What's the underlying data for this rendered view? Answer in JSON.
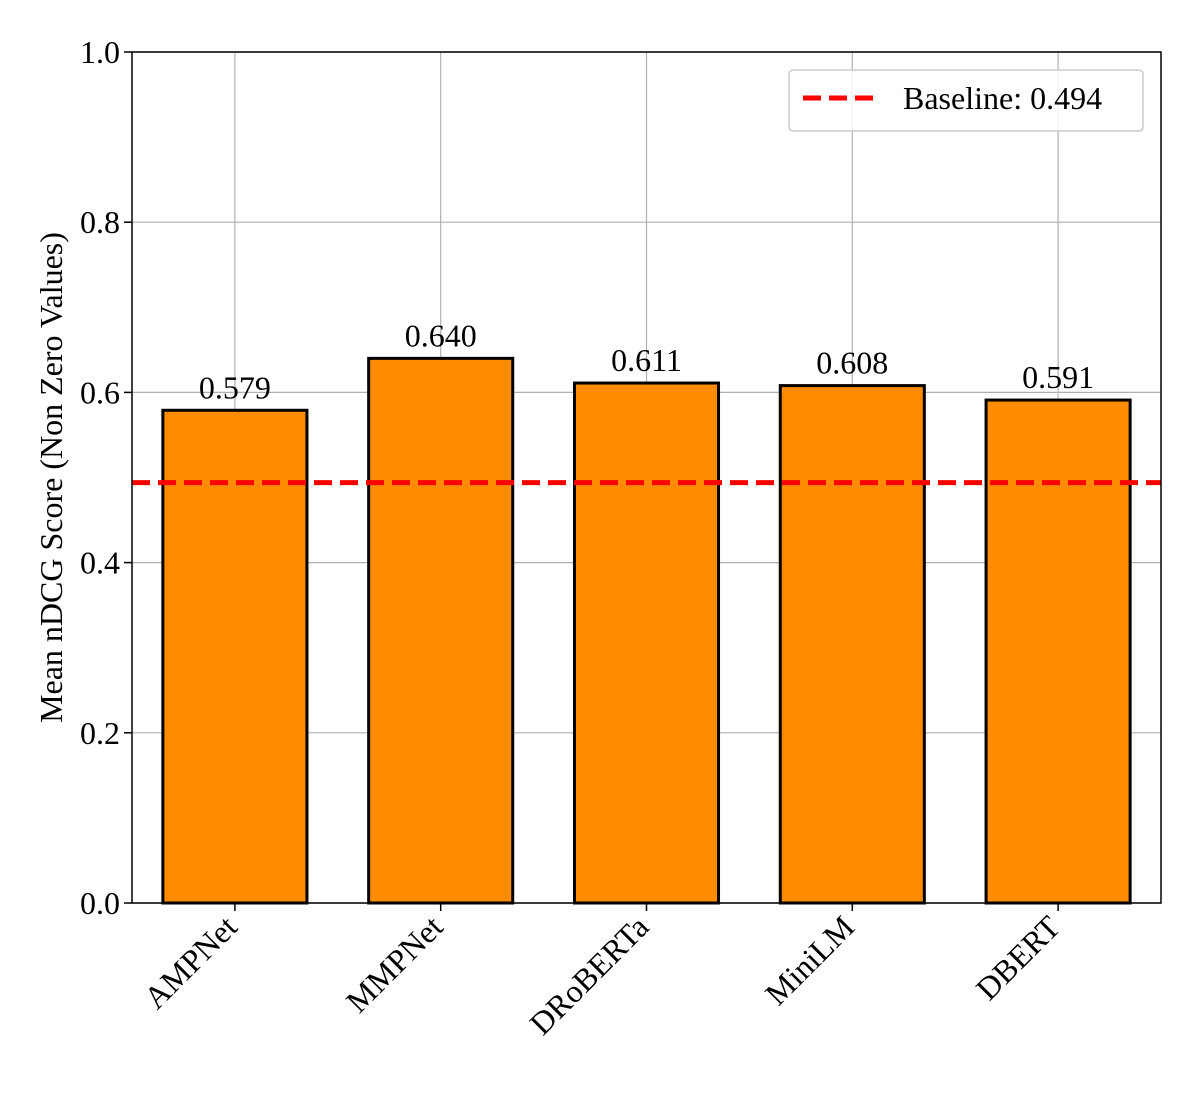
{
  "chart_data": {
    "type": "bar",
    "categories": [
      "AMPNet",
      "MMPNet",
      "DRoBERTa",
      "MiniLM",
      "DBERT"
    ],
    "values": [
      0.579,
      0.64,
      0.611,
      0.608,
      0.591
    ],
    "data_labels": [
      "0.579",
      "0.640",
      "0.611",
      "0.608",
      "0.591"
    ],
    "title": "",
    "xlabel": "",
    "ylabel": "Mean nDCG Score (Non Zero Values)",
    "ylim": [
      0,
      1.0
    ],
    "yticks": [
      "0.0",
      "0.2",
      "0.4",
      "0.6",
      "0.8",
      "1.0"
    ],
    "grid": true,
    "baseline": {
      "value": 0.494,
      "label": "Baseline: 0.494"
    },
    "legend_position": "top-right",
    "colors": {
      "bar_fill": "#FF8C00",
      "bar_edge": "#000000",
      "baseline": "#FF0000",
      "grid": "#b0b0b0"
    }
  }
}
